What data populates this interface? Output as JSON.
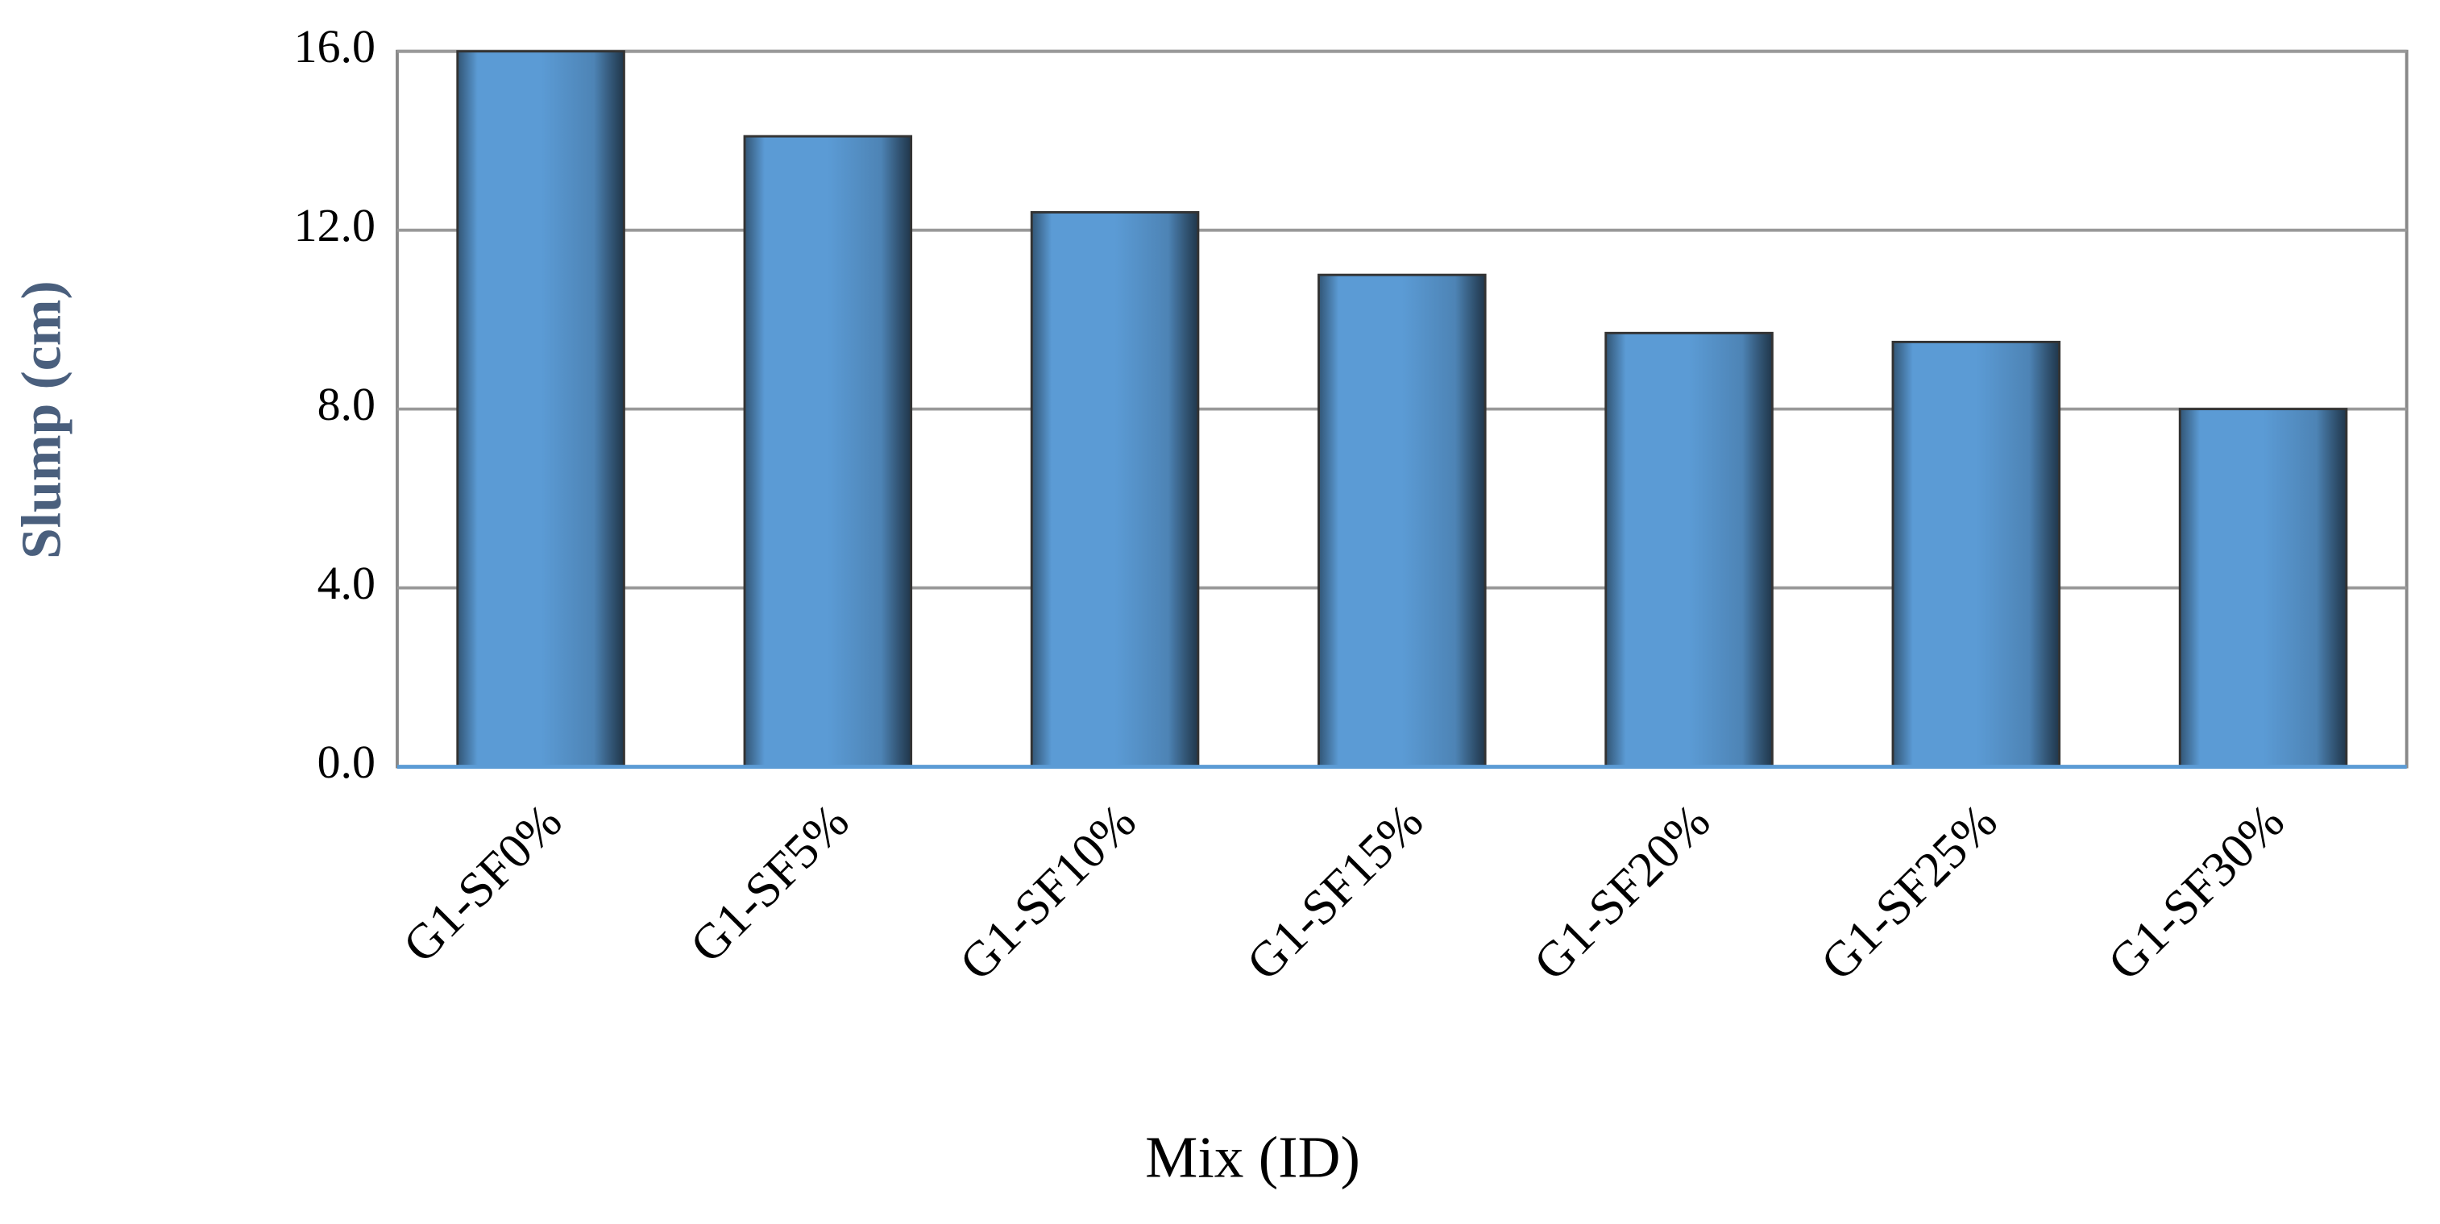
{
  "chart_data": {
    "type": "bar",
    "x_label": "Mix (ID)",
    "y_label": "Slump (cm)",
    "categories": [
      "G1-SF0%",
      "G1-SF5%",
      "G1-SF10%",
      "G1-SF15%",
      "G1-SF20%",
      "G1-SF25%",
      "G1-SF30%"
    ],
    "values": [
      16.0,
      14.1,
      12.4,
      11.0,
      9.7,
      9.5,
      8.0
    ],
    "color": "#5b9bd5",
    "ylim": [
      0,
      16
    ],
    "yticks": [
      {
        "value": 0,
        "label": "0.0"
      },
      {
        "value": 4,
        "label": "4.0"
      },
      {
        "value": 8,
        "label": "8.0"
      },
      {
        "value": 12,
        "label": "12.0"
      },
      {
        "value": 16,
        "label": "16.0"
      }
    ],
    "grid": true
  }
}
